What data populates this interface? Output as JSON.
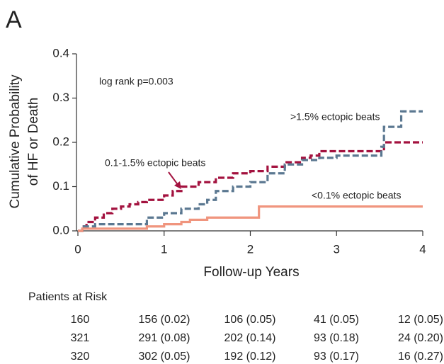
{
  "chart_data": {
    "type": "step",
    "panel": "A",
    "ylabel": [
      "Cumulative Probability",
      "of HF or Death"
    ],
    "xlabel": "Follow-up Years",
    "annotation": "log rank p=0.003",
    "xlim": [
      0,
      4
    ],
    "xticks": [
      0,
      1,
      2,
      3,
      4
    ],
    "ylim": [
      0,
      0.4
    ],
    "yticks": [
      {
        "value": 0,
        "label": "0.0"
      },
      0.1,
      0.2,
      0.3,
      0.4
    ],
    "series": [
      {
        "name": "0.1-1.5% ectopic beats",
        "color": "#a3123f",
        "linestyle": "dashed",
        "x": [
          0,
          0.05,
          0.1,
          0.2,
          0.3,
          0.4,
          0.5,
          0.6,
          0.7,
          0.8,
          1.0,
          1.1,
          1.2,
          1.4,
          1.6,
          1.8,
          2.0,
          2.2,
          2.4,
          2.6,
          2.7,
          2.8,
          3.5,
          3.55,
          4.0
        ],
        "values": [
          0,
          0.01,
          0.02,
          0.03,
          0.04,
          0.05,
          0.055,
          0.06,
          0.065,
          0.07,
          0.08,
          0.09,
          0.1,
          0.11,
          0.12,
          0.13,
          0.135,
          0.145,
          0.155,
          0.165,
          0.17,
          0.18,
          0.18,
          0.2,
          0.2
        ]
      },
      {
        "name": ">1.5% ectopic beats",
        "color": "#5b7891",
        "linestyle": "dashed",
        "x": [
          0,
          0.05,
          0.2,
          0.7,
          0.8,
          1.0,
          1.2,
          1.4,
          1.5,
          1.6,
          1.8,
          2.0,
          2.2,
          2.4,
          2.6,
          2.8,
          3.0,
          3.5,
          3.52,
          3.55,
          3.75,
          4.0
        ],
        "values": [
          0,
          0.01,
          0.015,
          0.015,
          0.03,
          0.04,
          0.05,
          0.06,
          0.07,
          0.09,
          0.1,
          0.11,
          0.13,
          0.15,
          0.16,
          0.165,
          0.17,
          0.17,
          0.19,
          0.235,
          0.27,
          0.27
        ]
      },
      {
        "name": "<0.1% ectopic beats",
        "color": "#f0957e",
        "linestyle": "solid",
        "x": [
          0,
          0.05,
          0.75,
          0.8,
          1.0,
          1.2,
          1.3,
          1.5,
          2.1,
          4.0
        ],
        "values": [
          0,
          0.005,
          0.005,
          0.01,
          0.015,
          0.02,
          0.025,
          0.03,
          0.055,
          0.055
        ]
      }
    ]
  },
  "risk_table": {
    "title": "Patients at Risk",
    "rows": [
      [
        "160",
        "156 (0.02)",
        "106 (0.05)",
        "41 (0.05)",
        "12 (0.05)"
      ],
      [
        "321",
        "291 (0.08)",
        "202 (0.14)",
        "93 (0.18)",
        "24 (0.20)"
      ],
      [
        "320",
        "302 (0.05)",
        "192 (0.12)",
        "93 (0.17)",
        "16 (0.27)"
      ]
    ]
  }
}
